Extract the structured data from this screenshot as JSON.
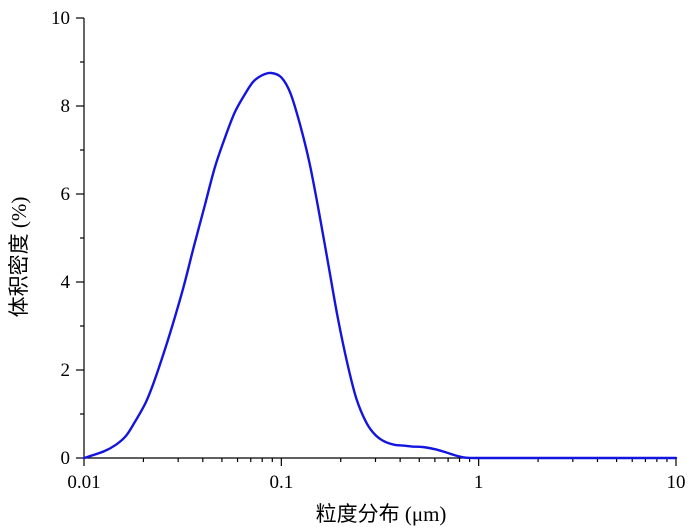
{
  "chart_data": {
    "type": "line",
    "xlabel": "粒度分布 (μm)",
    "ylabel": "体积密度 (%)",
    "x_scale": "log",
    "xlim": [
      0.01,
      10
    ],
    "ylim": [
      0,
      10
    ],
    "grid": false,
    "x_ticks": [
      "0.01",
      "0.1",
      "1",
      "10"
    ],
    "y_ticks": [
      "0",
      "2",
      "4",
      "6",
      "8",
      "10"
    ],
    "series": [
      {
        "color": "#1414e0",
        "x": [
          0.01,
          0.0126,
          0.0145,
          0.0163,
          0.018,
          0.0205,
          0.0225,
          0.025,
          0.028,
          0.032,
          0.036,
          0.041,
          0.046,
          0.052,
          0.058,
          0.065,
          0.072,
          0.08,
          0.089,
          0.1,
          0.111,
          0.124,
          0.139,
          0.155,
          0.173,
          0.193,
          0.216,
          0.24,
          0.27,
          0.3,
          0.335,
          0.375,
          0.42,
          0.46,
          0.52,
          0.6,
          0.68,
          0.76,
          0.85,
          0.95,
          1.1,
          1.5,
          2,
          3,
          5,
          7,
          10
        ],
        "values": [
          0.0,
          0.15,
          0.3,
          0.5,
          0.8,
          1.25,
          1.7,
          2.3,
          3.0,
          3.9,
          4.8,
          5.75,
          6.6,
          7.3,
          7.85,
          8.25,
          8.55,
          8.7,
          8.75,
          8.65,
          8.3,
          7.6,
          6.7,
          5.6,
          4.4,
          3.2,
          2.15,
          1.35,
          0.8,
          0.52,
          0.37,
          0.3,
          0.28,
          0.26,
          0.25,
          0.2,
          0.13,
          0.06,
          0.01,
          0.0,
          0.0,
          0.0,
          0.0,
          0.0,
          0.0,
          0.0,
          0.0
        ]
      }
    ]
  }
}
